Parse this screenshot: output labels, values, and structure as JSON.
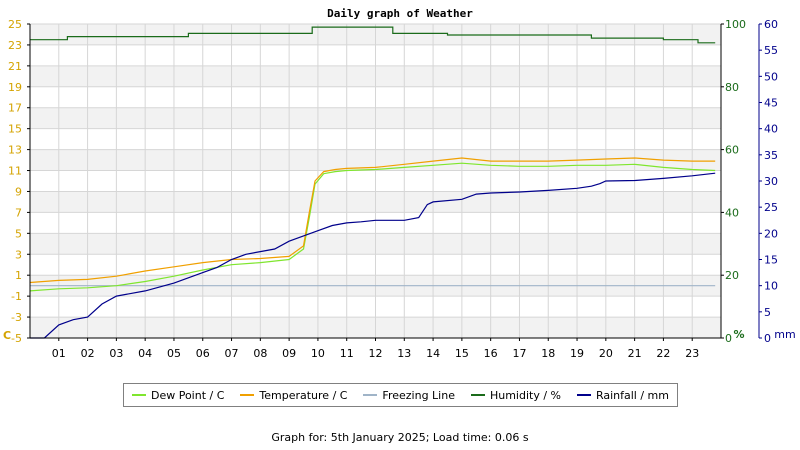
{
  "chart_data": {
    "type": "line",
    "title": "Daily graph of Weather",
    "x_ticks": [
      "01",
      "02",
      "03",
      "04",
      "05",
      "06",
      "07",
      "08",
      "09",
      "10",
      "11",
      "12",
      "13",
      "14",
      "15",
      "16",
      "17",
      "18",
      "19",
      "20",
      "21",
      "22",
      "23"
    ],
    "x_range": [
      0,
      24
    ],
    "axes": {
      "left": {
        "unit_label": "C",
        "range": [
          -5,
          25
        ],
        "ticks": [
          "-5",
          "-3",
          "-1",
          "1",
          "3",
          "5",
          "7",
          "9",
          "11",
          "13",
          "15",
          "17",
          "19",
          "21",
          "23",
          "25"
        ],
        "color": "#d4a300"
      },
      "right_humidity": {
        "unit_label": "%",
        "range": [
          0,
          100
        ],
        "ticks": [
          "0",
          "20",
          "40",
          "60",
          "80",
          "100"
        ],
        "color": "#1a6b1a"
      },
      "right_rainfall": {
        "unit_label": "mm",
        "range": [
          0,
          60
        ],
        "ticks": [
          "0",
          "5",
          "10",
          "15",
          "20",
          "25",
          "30",
          "35",
          "40",
          "45",
          "50",
          "55",
          "60"
        ],
        "color": "#00008b"
      }
    },
    "series": [
      {
        "name": "Dew Point / C",
        "axis": "left",
        "color": "#7fe62e",
        "points": [
          [
            0,
            -0.5
          ],
          [
            1,
            -0.3
          ],
          [
            2,
            -0.2
          ],
          [
            3,
            0.0
          ],
          [
            4,
            0.4
          ],
          [
            5,
            0.9
          ],
          [
            6,
            1.5
          ],
          [
            7,
            2.0
          ],
          [
            8,
            2.2
          ],
          [
            9,
            2.5
          ],
          [
            9.5,
            3.5
          ],
          [
            9.7,
            6.5
          ],
          [
            9.9,
            9.7
          ],
          [
            10.2,
            10.7
          ],
          [
            10.6,
            10.9
          ],
          [
            11,
            11.0
          ],
          [
            12,
            11.1
          ],
          [
            13,
            11.3
          ],
          [
            14,
            11.5
          ],
          [
            15,
            11.7
          ],
          [
            16,
            11.5
          ],
          [
            17,
            11.4
          ],
          [
            18,
            11.4
          ],
          [
            19,
            11.5
          ],
          [
            20,
            11.5
          ],
          [
            21,
            11.6
          ],
          [
            22,
            11.3
          ],
          [
            23,
            11.1
          ],
          [
            23.8,
            11.0
          ]
        ]
      },
      {
        "name": "Temperature / C",
        "axis": "left",
        "color": "#f0a000",
        "points": [
          [
            0,
            0.3
          ],
          [
            1,
            0.5
          ],
          [
            2,
            0.6
          ],
          [
            3,
            0.9
          ],
          [
            4,
            1.4
          ],
          [
            5,
            1.8
          ],
          [
            6,
            2.2
          ],
          [
            7,
            2.5
          ],
          [
            8,
            2.6
          ],
          [
            9,
            2.8
          ],
          [
            9.5,
            3.8
          ],
          [
            9.7,
            7.0
          ],
          [
            9.9,
            10.0
          ],
          [
            10.2,
            10.9
          ],
          [
            10.6,
            11.1
          ],
          [
            11,
            11.2
          ],
          [
            12,
            11.3
          ],
          [
            13,
            11.6
          ],
          [
            14,
            11.9
          ],
          [
            15,
            12.2
          ],
          [
            16,
            11.9
          ],
          [
            17,
            11.9
          ],
          [
            18,
            11.9
          ],
          [
            19,
            12.0
          ],
          [
            20,
            12.1
          ],
          [
            21,
            12.2
          ],
          [
            22,
            12.0
          ],
          [
            23,
            11.9
          ],
          [
            23.8,
            11.9
          ]
        ]
      },
      {
        "name": "Freezing Line",
        "axis": "left",
        "color": "#a0b4c8",
        "points": [
          [
            0,
            0
          ],
          [
            23.8,
            0
          ]
        ]
      },
      {
        "name": "Humidity / %",
        "axis": "right_humidity",
        "color": "#1a6b1a",
        "points": [
          [
            0,
            95
          ],
          [
            1.3,
            95
          ],
          [
            1.3,
            96
          ],
          [
            5.5,
            96
          ],
          [
            5.5,
            97
          ],
          [
            9.8,
            97
          ],
          [
            9.8,
            99
          ],
          [
            12.6,
            99
          ],
          [
            12.6,
            97
          ],
          [
            14.5,
            97
          ],
          [
            14.5,
            96.5
          ],
          [
            19.5,
            96.5
          ],
          [
            19.5,
            95.5
          ],
          [
            22,
            95.5
          ],
          [
            22,
            95
          ],
          [
            23.2,
            95
          ],
          [
            23.2,
            94
          ],
          [
            23.8,
            94
          ]
        ]
      },
      {
        "name": "Rainfall / mm",
        "axis": "right_rainfall",
        "color": "#00008b",
        "points": [
          [
            0,
            0
          ],
          [
            0.5,
            0
          ],
          [
            1,
            2.5
          ],
          [
            1.5,
            3.5
          ],
          [
            2,
            4
          ],
          [
            2.5,
            6.5
          ],
          [
            3,
            8
          ],
          [
            4,
            9
          ],
          [
            5,
            10.5
          ],
          [
            6,
            12.5
          ],
          [
            6.5,
            13.5
          ],
          [
            7,
            15
          ],
          [
            7.5,
            16
          ],
          [
            8,
            16.5
          ],
          [
            8.5,
            17
          ],
          [
            9,
            18.5
          ],
          [
            9.5,
            19.5
          ],
          [
            10,
            20.5
          ],
          [
            10.5,
            21.5
          ],
          [
            11,
            22
          ],
          [
            11.5,
            22.2
          ],
          [
            12,
            22.5
          ],
          [
            13,
            22.5
          ],
          [
            13.5,
            23
          ],
          [
            13.8,
            25.5
          ],
          [
            14,
            26
          ],
          [
            15,
            26.5
          ],
          [
            15.5,
            27.5
          ],
          [
            16,
            27.7
          ],
          [
            17,
            27.9
          ],
          [
            18,
            28.2
          ],
          [
            19,
            28.6
          ],
          [
            19.5,
            29
          ],
          [
            19.8,
            29.5
          ],
          [
            20,
            30
          ],
          [
            21,
            30.1
          ],
          [
            22,
            30.5
          ],
          [
            23,
            31
          ],
          [
            23.8,
            31.5
          ]
        ]
      }
    ],
    "grid": true,
    "legend_placement": "bottom-center"
  },
  "legend": {
    "items": [
      {
        "label": "Dew Point / C",
        "color": "#7fe62e"
      },
      {
        "label": "Temperature / C",
        "color": "#f0a000"
      },
      {
        "label": "Freezing Line",
        "color": "#a0b4c8"
      },
      {
        "label": "Humidity / %",
        "color": "#1a6b1a"
      },
      {
        "label": "Rainfall / mm",
        "color": "#00008b"
      }
    ]
  },
  "footer": {
    "text": "Graph for: 5th January 2025; Load time: 0.06 s"
  }
}
